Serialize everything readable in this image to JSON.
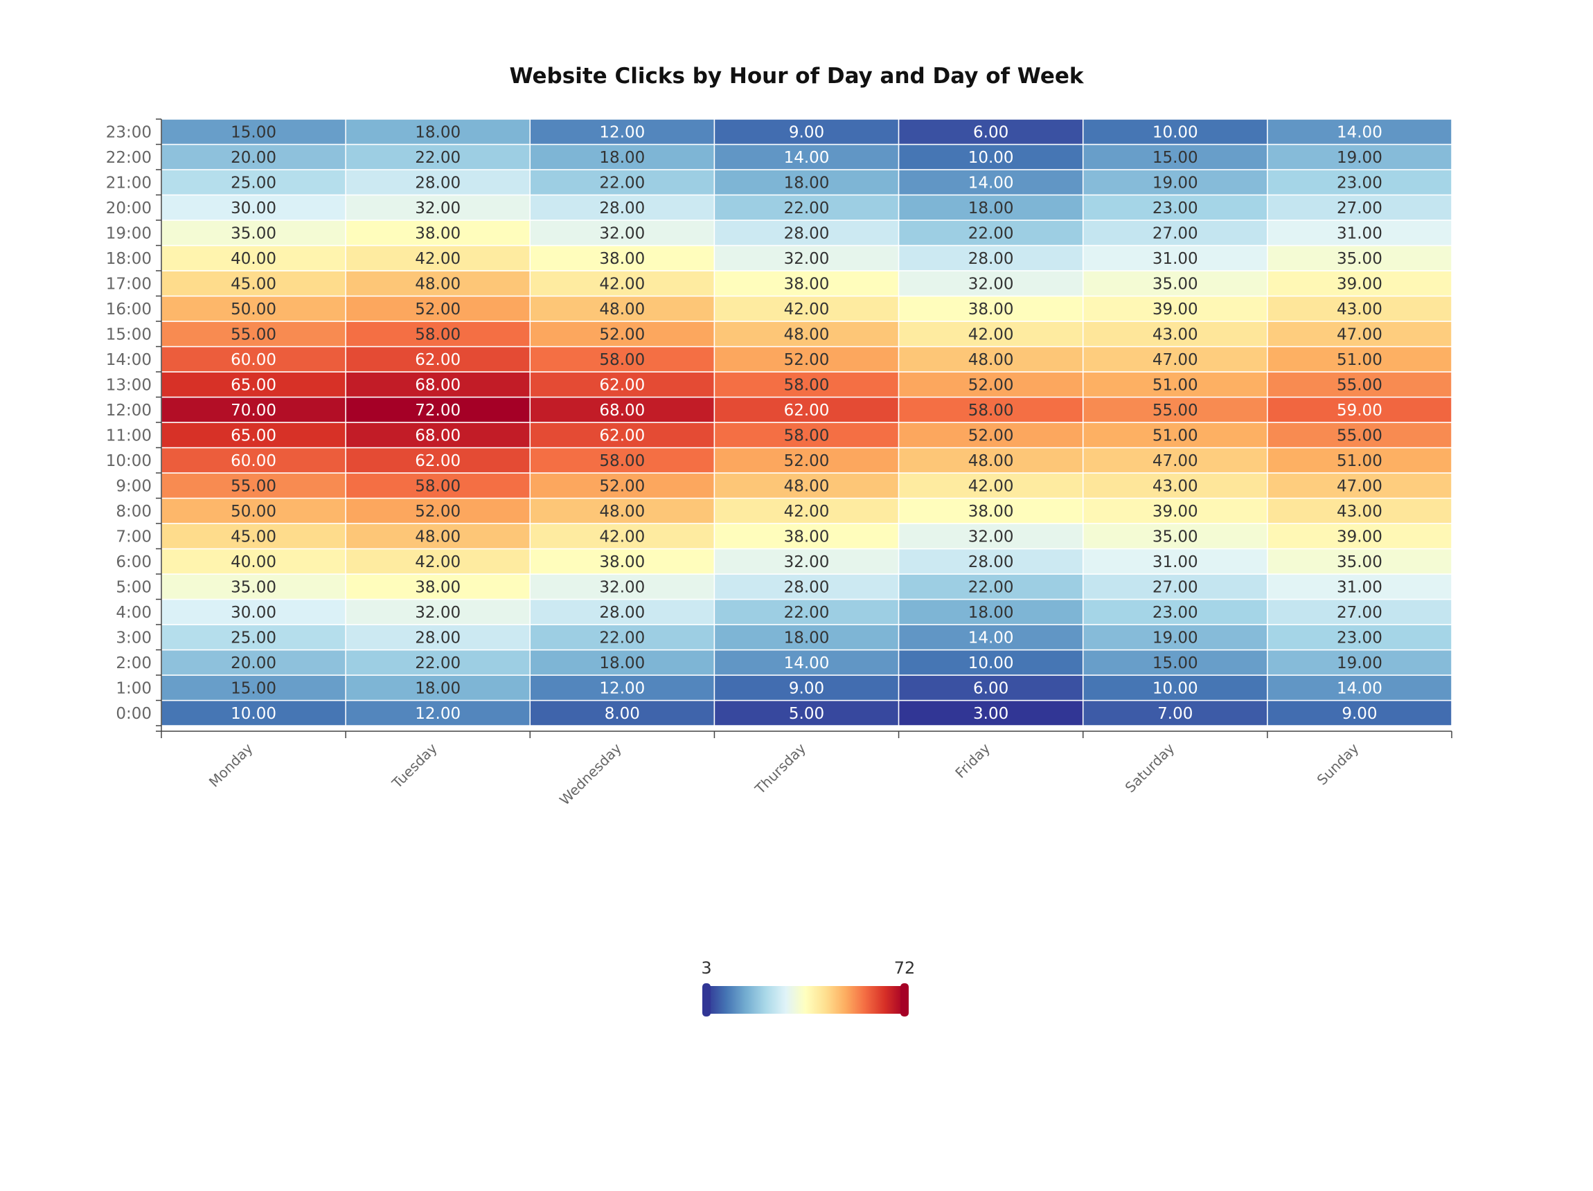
{
  "chart_data": {
    "type": "heatmap",
    "title": "Website Clicks by Hour of Day and Day of Week",
    "x_categories": [
      "Monday",
      "Tuesday",
      "Wednesday",
      "Thursday",
      "Friday",
      "Saturday",
      "Sunday"
    ],
    "y_categories": [
      "0:00",
      "1:00",
      "2:00",
      "3:00",
      "4:00",
      "5:00",
      "6:00",
      "7:00",
      "8:00",
      "9:00",
      "10:00",
      "11:00",
      "12:00",
      "13:00",
      "14:00",
      "15:00",
      "16:00",
      "17:00",
      "18:00",
      "19:00",
      "20:00",
      "21:00",
      "22:00",
      "23:00"
    ],
    "values": [
      [
        10,
        12,
        8,
        5,
        3,
        7,
        9
      ],
      [
        15,
        18,
        12,
        9,
        6,
        10,
        14
      ],
      [
        20,
        22,
        18,
        14,
        10,
        15,
        19
      ],
      [
        25,
        28,
        22,
        18,
        14,
        19,
        23
      ],
      [
        30,
        32,
        28,
        22,
        18,
        23,
        27
      ],
      [
        35,
        38,
        32,
        28,
        22,
        27,
        31
      ],
      [
        40,
        42,
        38,
        32,
        28,
        31,
        35
      ],
      [
        45,
        48,
        42,
        38,
        32,
        35,
        39
      ],
      [
        50,
        52,
        48,
        42,
        38,
        39,
        43
      ],
      [
        55,
        58,
        52,
        48,
        42,
        43,
        47
      ],
      [
        60,
        62,
        58,
        52,
        48,
        47,
        51
      ],
      [
        65,
        68,
        62,
        58,
        52,
        51,
        55
      ],
      [
        70,
        72,
        68,
        62,
        58,
        55,
        59
      ],
      [
        65,
        68,
        62,
        58,
        52,
        51,
        55
      ],
      [
        60,
        62,
        58,
        52,
        48,
        47,
        51
      ],
      [
        55,
        58,
        52,
        48,
        42,
        43,
        47
      ],
      [
        50,
        52,
        48,
        42,
        38,
        39,
        43
      ],
      [
        45,
        48,
        42,
        38,
        32,
        35,
        39
      ],
      [
        40,
        42,
        38,
        32,
        28,
        31,
        35
      ],
      [
        35,
        38,
        32,
        28,
        22,
        27,
        31
      ],
      [
        30,
        32,
        28,
        22,
        18,
        23,
        27
      ],
      [
        25,
        28,
        22,
        18,
        14,
        19,
        23
      ],
      [
        20,
        22,
        18,
        14,
        10,
        15,
        19
      ],
      [
        15,
        18,
        12,
        9,
        6,
        10,
        14
      ]
    ],
    "value_format": "0.00",
    "visual_map": {
      "min": 3,
      "max": 72,
      "min_label": "3",
      "max_label": "72",
      "colors": [
        "#313695",
        "#4575b4",
        "#74add1",
        "#abd9e9",
        "#e0f3f8",
        "#ffffbf",
        "#fee090",
        "#fdae61",
        "#f46d43",
        "#d73027",
        "#a50026"
      ]
    },
    "grid": false,
    "cell_border_color": "#ffffff"
  }
}
